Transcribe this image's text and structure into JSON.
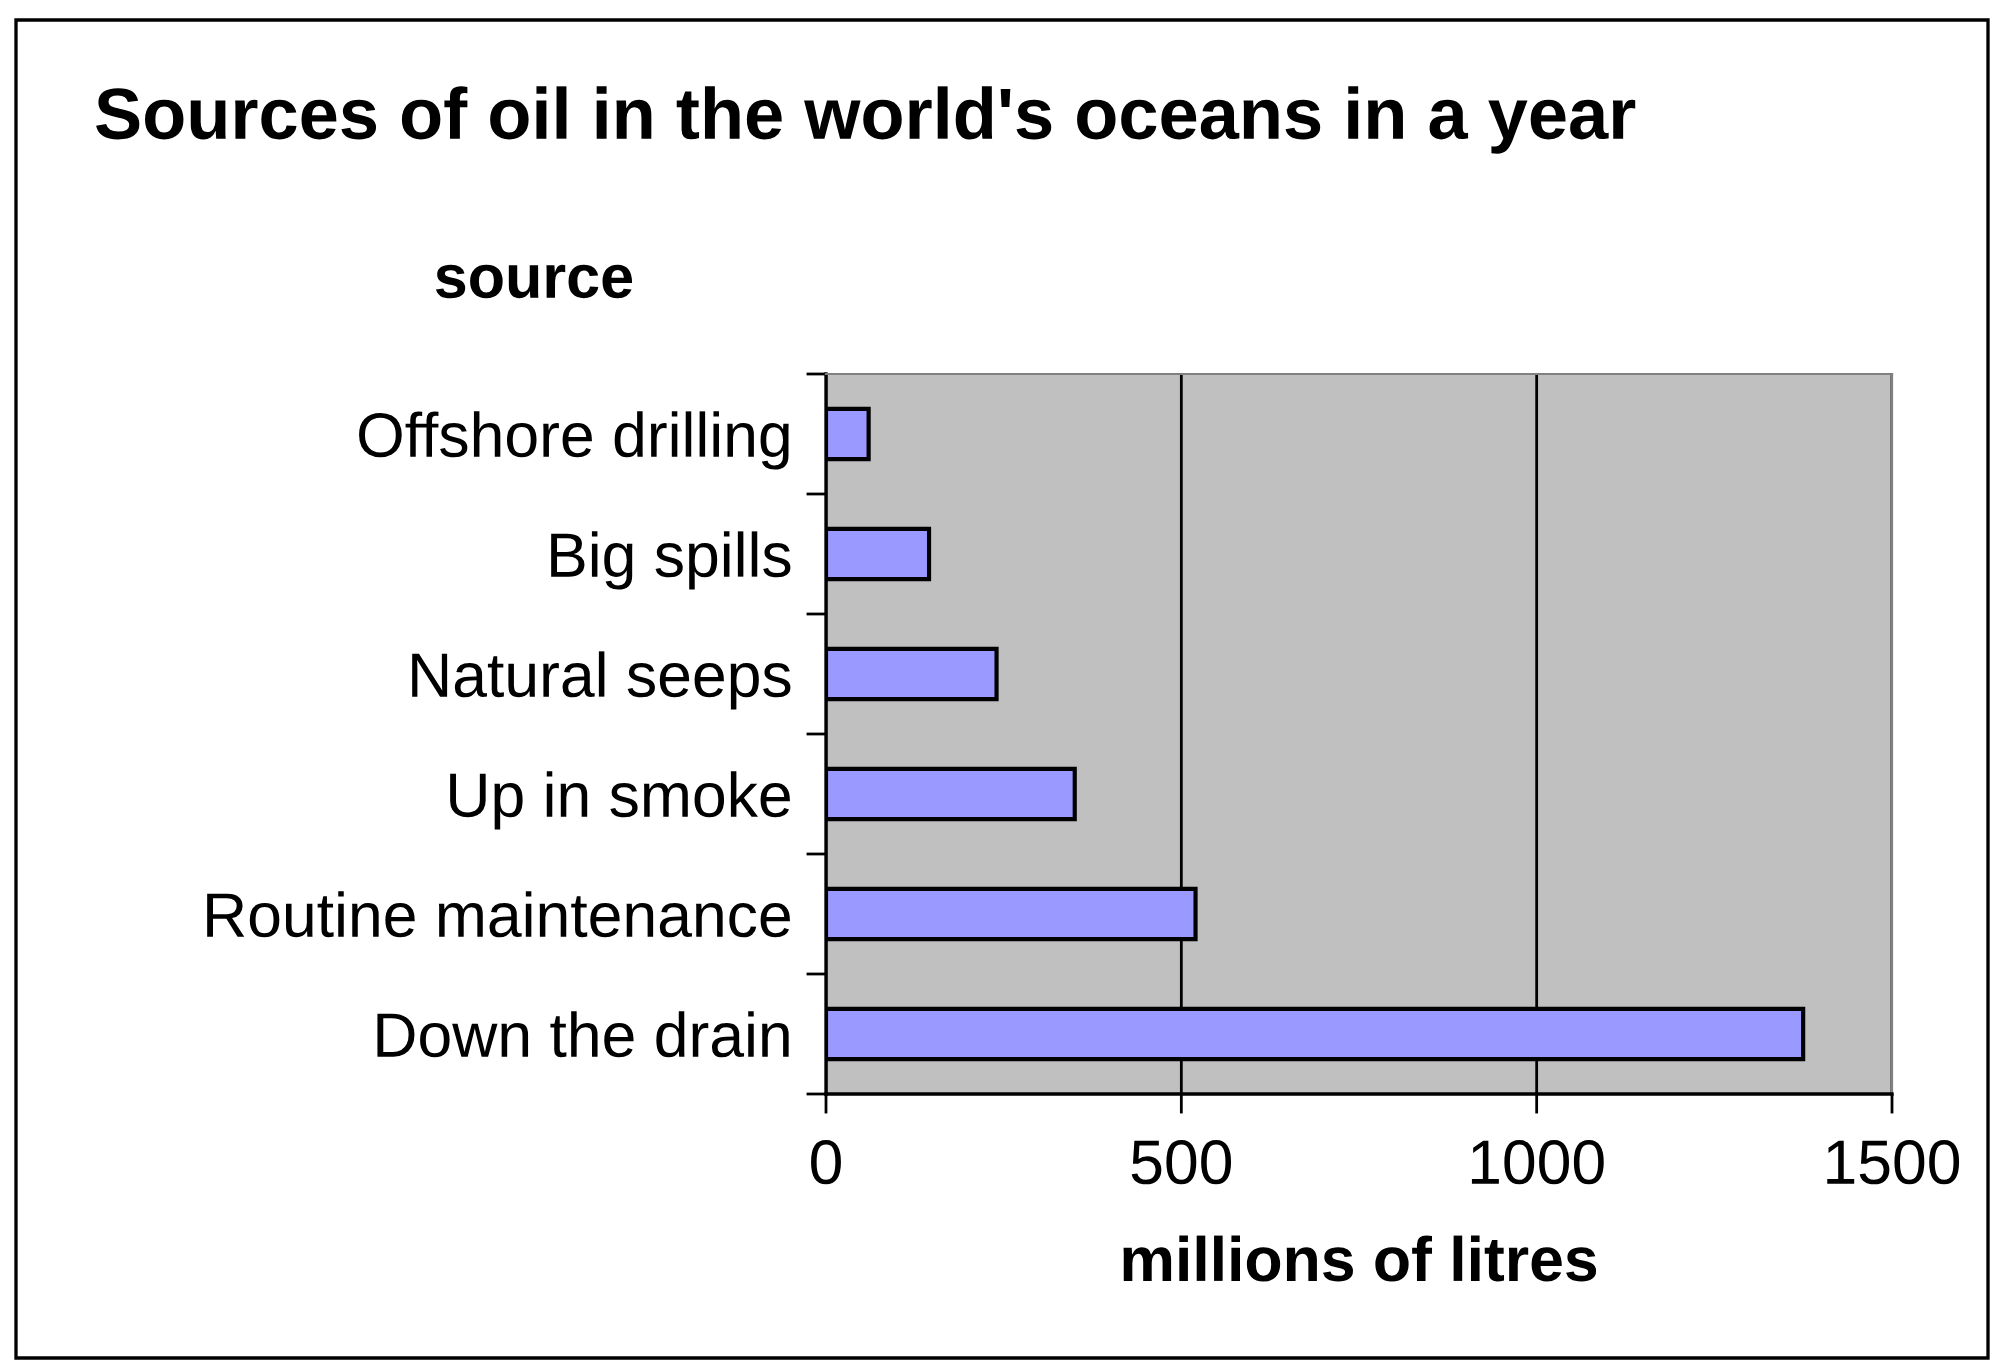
{
  "chart_data": {
    "type": "bar",
    "orientation": "horizontal",
    "title": "Sources of oil in the world's oceans in a year",
    "ylabel": "source",
    "xlabel": "millions of litres",
    "categories": [
      "Offshore drilling",
      "Big spills",
      "Natural seeps",
      "Up in smoke",
      "Routine maintenance",
      "Down the drain"
    ],
    "values": [
      60,
      145,
      240,
      350,
      520,
      1375
    ],
    "color": "#9999ff",
    "xlim": [
      0,
      1500
    ],
    "xticks": [
      0,
      500,
      1000,
      1500
    ],
    "grid": "x",
    "legend": false
  }
}
